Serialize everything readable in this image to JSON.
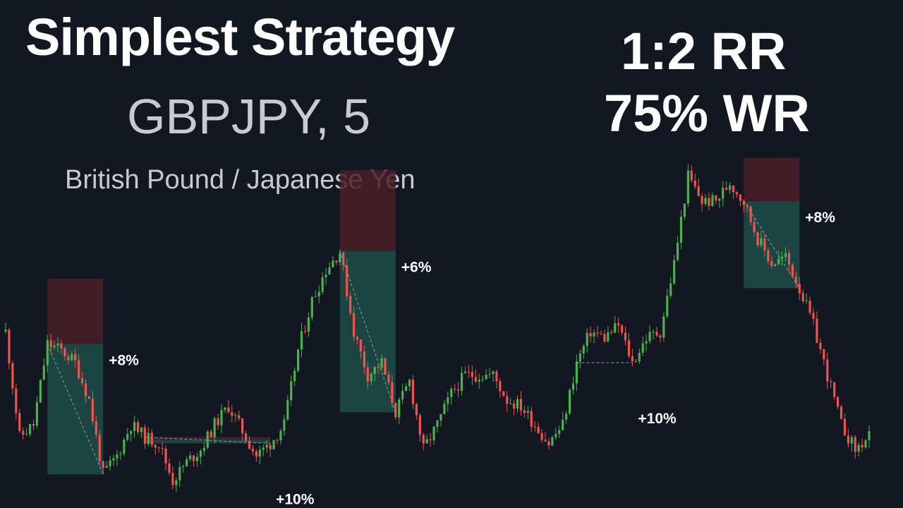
{
  "header": {
    "title": "Simplest Strategy",
    "symbol": "GBPJPY, 5",
    "description": "British Pound / Japanese Yen",
    "risk_reward": "1:2 RR",
    "win_rate": "75% WR"
  },
  "colors": {
    "background": "#131722",
    "up_candle": "#26a69a",
    "wick_up": "#4caf50",
    "down_candle": "#ef5350",
    "target_zone": "#1e4d47",
    "stop_zone": "#4a1f28"
  },
  "chart_data": {
    "type": "candlestick",
    "timeframe": "5",
    "grid": false,
    "price_path": [
      [
        0,
        75
      ],
      [
        2,
        58
      ],
      [
        4,
        60
      ],
      [
        6,
        73
      ],
      [
        8,
        72
      ],
      [
        10,
        70
      ],
      [
        12,
        64
      ],
      [
        14,
        52
      ],
      [
        16,
        55
      ],
      [
        18,
        60
      ],
      [
        20,
        58
      ],
      [
        22,
        57
      ],
      [
        24,
        51
      ],
      [
        26,
        54
      ],
      [
        28,
        56
      ],
      [
        30,
        60
      ],
      [
        32,
        63
      ],
      [
        34,
        59
      ],
      [
        36,
        55
      ],
      [
        38,
        57
      ],
      [
        40,
        60
      ],
      [
        42,
        72
      ],
      [
        44,
        80
      ],
      [
        46,
        85
      ],
      [
        48,
        88
      ],
      [
        50,
        75
      ],
      [
        52,
        68
      ],
      [
        54,
        70
      ],
      [
        56,
        62
      ],
      [
        58,
        67
      ],
      [
        60,
        56
      ],
      [
        62,
        60
      ],
      [
        64,
        65
      ],
      [
        66,
        68
      ],
      [
        68,
        68
      ],
      [
        70,
        68
      ],
      [
        72,
        64
      ],
      [
        74,
        63
      ],
      [
        76,
        60
      ],
      [
        78,
        57
      ],
      [
        80,
        60
      ],
      [
        82,
        70
      ],
      [
        84,
        75
      ],
      [
        86,
        74
      ],
      [
        88,
        76
      ],
      [
        90,
        70
      ],
      [
        92,
        74
      ],
      [
        94,
        75
      ],
      [
        96,
        86
      ],
      [
        98,
        100
      ],
      [
        100,
        96
      ],
      [
        102,
        96
      ],
      [
        104,
        99
      ],
      [
        106,
        96
      ],
      [
        108,
        90
      ],
      [
        110,
        86
      ],
      [
        112,
        87
      ],
      [
        114,
        82
      ],
      [
        116,
        76
      ],
      [
        118,
        68
      ],
      [
        120,
        60
      ],
      [
        122,
        56
      ],
      [
        124,
        58
      ]
    ],
    "trades": [
      {
        "label": "+8%",
        "direction": "short",
        "start": 6,
        "end": 14
      },
      {
        "label": "+10%",
        "direction": "long",
        "start": 20,
        "end": 38
      },
      {
        "label": "+6%",
        "direction": "short",
        "start": 48,
        "end": 56
      },
      {
        "label": "+10%",
        "direction": "long",
        "start": 82,
        "end": 90
      },
      {
        "label": "+8%",
        "direction": "short",
        "start": 106,
        "end": 114
      }
    ]
  }
}
